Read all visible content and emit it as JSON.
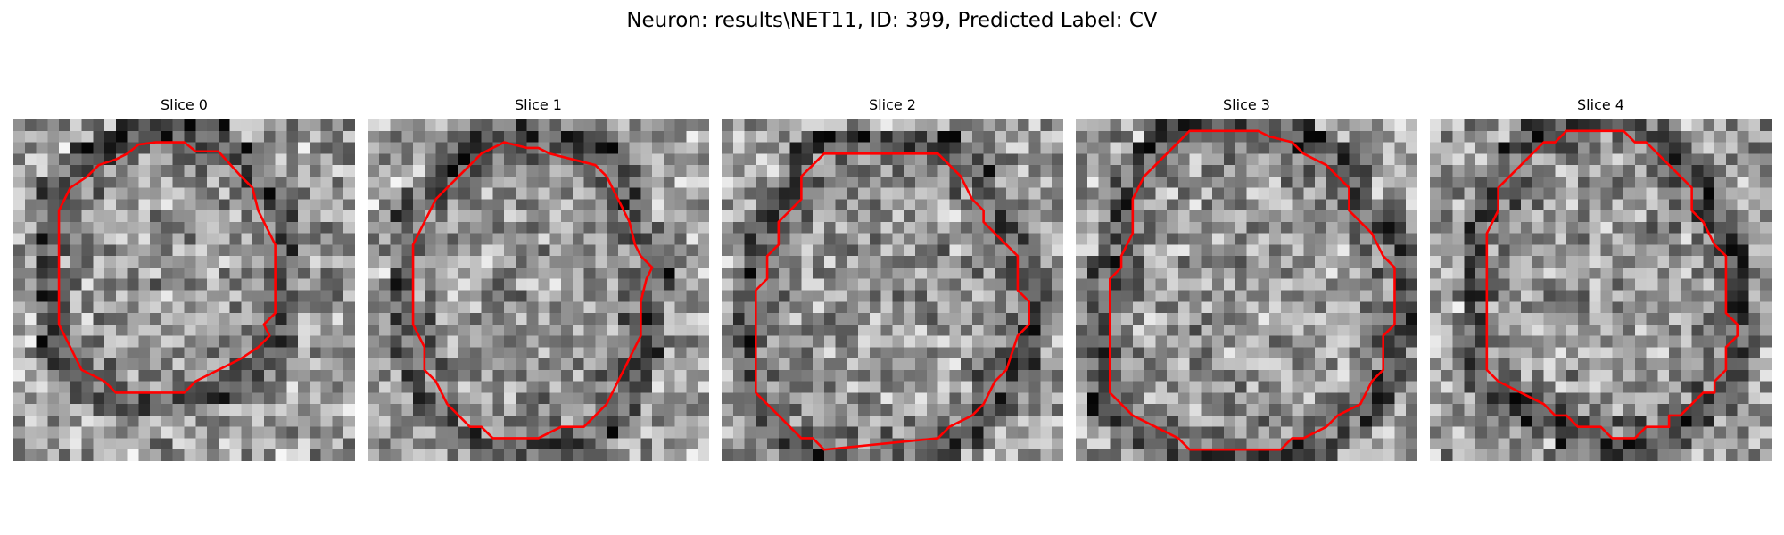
{
  "figure": {
    "title": "Neuron: results\\NET11, ID: 399, Predicted Label: CV"
  },
  "slices": [
    {
      "title": "Slice 0"
    },
    {
      "title": "Slice 1"
    },
    {
      "title": "Slice 2"
    },
    {
      "title": "Slice 3"
    },
    {
      "title": "Slice 4"
    }
  ],
  "image_style": {
    "colormap": "gray",
    "contour_color": "#ff0000"
  }
}
